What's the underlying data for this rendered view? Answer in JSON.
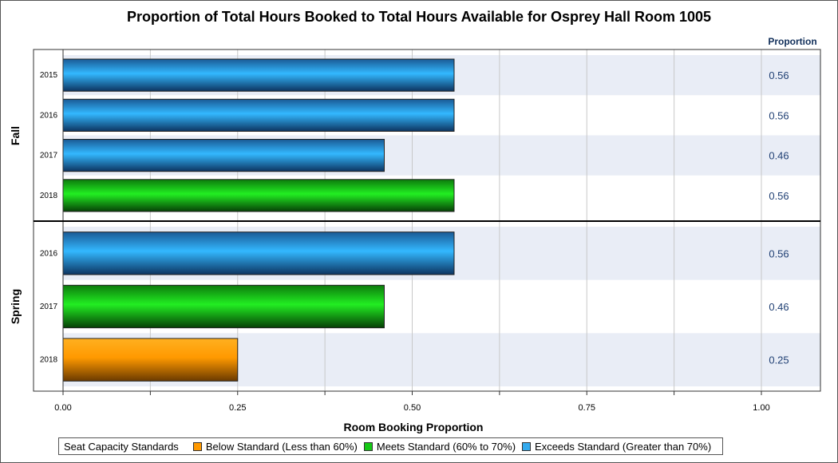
{
  "chart_data": {
    "type": "bar",
    "orientation": "horizontal",
    "title": "Proportion of Total Hours Booked to Total Hours Available for Osprey Hall Room 1005",
    "xlabel": "Room Booking Proportion",
    "value_column_header": "Proportion",
    "xlim": [
      0,
      1.05
    ],
    "x_ticks": [
      "0.00",
      "0.25",
      "0.50",
      "0.75",
      "1.00"
    ],
    "x_tick_values": [
      0,
      0.25,
      0.5,
      0.75,
      1.0
    ],
    "grid": true,
    "groups": [
      {
        "name": "Fall",
        "bars": [
          {
            "category": "2015",
            "value": 0.56,
            "label": "0.56",
            "standard": "exceeds"
          },
          {
            "category": "2016",
            "value": 0.56,
            "label": "0.56",
            "standard": "exceeds"
          },
          {
            "category": "2017",
            "value": 0.46,
            "label": "0.46",
            "standard": "exceeds"
          },
          {
            "category": "2018",
            "value": 0.56,
            "label": "0.56",
            "standard": "meets"
          }
        ]
      },
      {
        "name": "Spring",
        "bars": [
          {
            "category": "2016",
            "value": 0.56,
            "label": "0.56",
            "standard": "exceeds"
          },
          {
            "category": "2017",
            "value": 0.46,
            "label": "0.46",
            "standard": "meets"
          },
          {
            "category": "2018",
            "value": 0.25,
            "label": "0.25",
            "standard": "below"
          }
        ]
      }
    ],
    "legend": {
      "title": "Seat Capacity Standards",
      "placement": "bottom",
      "items": [
        {
          "key": "below",
          "label": "Below Standard (Less than 60%)",
          "color": "#ff9900"
        },
        {
          "key": "meets",
          "label": "Meets Standard (60% to 70%)",
          "color": "#16c916"
        },
        {
          "key": "exceeds",
          "label": "Exceeds Standard (Greater than 70%)",
          "color": "#33aaee"
        }
      ]
    },
    "colors": {
      "below": {
        "top": "#ffb020",
        "mid": "#ff9900",
        "bot": "#6b3a00"
      },
      "meets": {
        "top": "#0c7a0c",
        "mid": "#22ee22",
        "bot": "#064006"
      },
      "exceeds": {
        "top": "#1a5a95",
        "mid": "#33b8ff",
        "bot": "#0d3460"
      },
      "band": "#e9edf6"
    }
  }
}
